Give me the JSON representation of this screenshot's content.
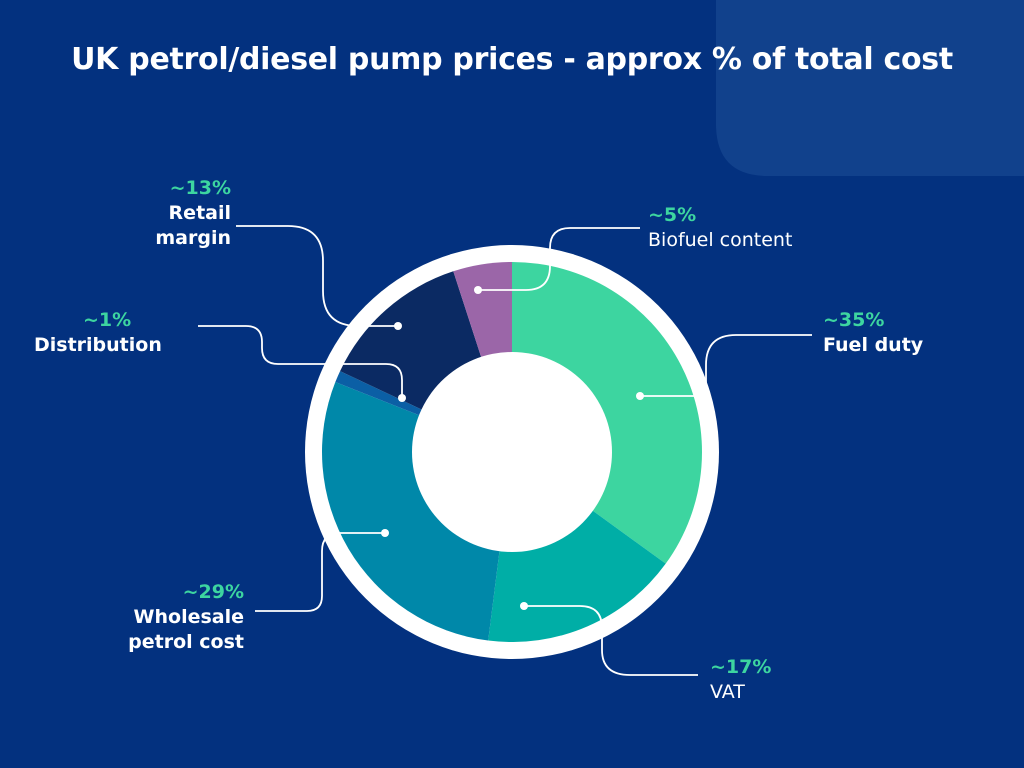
{
  "colors": {
    "background": "#03317f",
    "corner_shape": "#11418c",
    "ring": "#ffffff",
    "hole": "#ffffff",
    "leader": "#ffffff",
    "percent_text": "#3dd5a0",
    "label_text": "#ffffff"
  },
  "chart_data": {
    "type": "pie",
    "title": "UK petrol/diesel pump prices - approx % of total cost",
    "donut": true,
    "slices": [
      {
        "label": "Fuel duty",
        "percent_label": "~35%",
        "value": 35,
        "color": "#3dd5a0",
        "label_bold": true
      },
      {
        "label": "VAT",
        "percent_label": "~17%",
        "value": 17,
        "color": "#00aea6",
        "label_bold": false
      },
      {
        "label": "Wholesale petrol cost",
        "display_lines": [
          "Wholesale",
          "petrol cost"
        ],
        "percent_label": "~29%",
        "value": 29,
        "color": "#0088a9",
        "label_bold": true
      },
      {
        "label": "Distribution",
        "display_lines": [
          "Distribution"
        ],
        "percent_label": "~1%",
        "value": 1,
        "color": "#0b5fa5",
        "label_bold": true
      },
      {
        "label": "Retail margin",
        "display_lines": [
          "Retail",
          "margin"
        ],
        "percent_label": "~13%",
        "value": 13,
        "color": "#0b2a63",
        "label_bold": true
      },
      {
        "label": "Biofuel content",
        "display_lines": [
          "Biofuel content"
        ],
        "percent_label": "~5%",
        "value": 5,
        "color": "#9b66a8",
        "label_bold": false
      }
    ]
  }
}
